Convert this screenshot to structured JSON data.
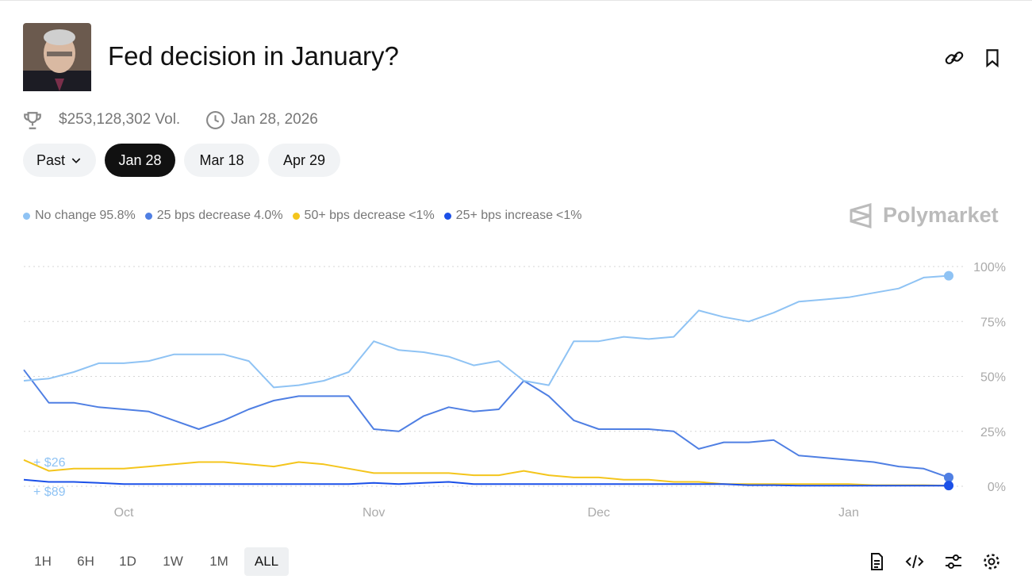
{
  "header": {
    "title": "Fed decision in January?",
    "volume": "$253,128,302 Vol.",
    "end_date": "Jan 28, 2026"
  },
  "tabs": [
    "Past",
    "Jan 28",
    "Mar 18",
    "Apr 29"
  ],
  "brand": "Polymarket",
  "ranges": [
    "1H",
    "6H",
    "1D",
    "1W",
    "1M",
    "ALL"
  ],
  "chart_data": {
    "type": "line",
    "categories": [
      null,
      null,
      null,
      null,
      "Oct",
      null,
      null,
      null,
      null,
      null,
      null,
      null,
      null,
      null,
      "Nov",
      null,
      null,
      null,
      null,
      null,
      null,
      null,
      null,
      "Dec",
      null,
      null,
      null,
      null,
      null,
      null,
      null,
      null,
      null,
      "Jan",
      null,
      null,
      null,
      null
    ],
    "series": [
      {
        "name": "No change",
        "legend_value": "95.8%",
        "color": "#8fc3f4",
        "values": [
          48,
          49,
          52,
          56,
          56,
          57,
          60,
          60,
          60,
          57,
          45,
          46,
          48,
          52,
          66,
          62,
          61,
          59,
          55,
          57,
          48,
          46,
          66,
          66,
          68,
          67,
          68,
          80,
          77,
          75,
          79,
          84,
          85,
          86,
          88,
          90,
          95,
          95.8
        ]
      },
      {
        "name": "25 bps decrease",
        "legend_value": "4.0%",
        "color": "#4f7fe3",
        "values": [
          53,
          38,
          38,
          36,
          35,
          34,
          30,
          26,
          30,
          35,
          39,
          41,
          41,
          41,
          26,
          25,
          32,
          36,
          34,
          35,
          48,
          41,
          30,
          26,
          26,
          26,
          25,
          17,
          20,
          20,
          21,
          14,
          13,
          12,
          11,
          9,
          8,
          4
        ]
      },
      {
        "name": "50+ bps decrease",
        "legend_value": "<1%",
        "color": "#f4c51c",
        "values": [
          12,
          7,
          8,
          8,
          8,
          9,
          10,
          11,
          11,
          10,
          9,
          11,
          10,
          8,
          6,
          6,
          6,
          6,
          5,
          5,
          7,
          5,
          4,
          4,
          3,
          3,
          2,
          2,
          1,
          1,
          1,
          1,
          1,
          1,
          0.5,
          0.5,
          0.5,
          0.3
        ]
      },
      {
        "name": "25+ bps increase",
        "legend_value": "<1%",
        "color": "#1b50e8",
        "values": [
          3,
          2,
          2,
          1.5,
          1,
          1,
          1,
          1,
          1,
          1,
          1,
          1,
          1,
          1,
          1.5,
          1,
          1.5,
          2,
          1,
          1,
          1,
          1,
          1,
          1,
          1,
          1,
          1,
          1,
          1,
          0.5,
          0.5,
          0.3,
          0.3,
          0.3,
          0.3,
          0.3,
          0.3,
          0.3
        ]
      }
    ],
    "annotations": [
      "+ $26",
      "+ $89"
    ],
    "ylim": [
      0,
      100
    ],
    "yticks": [
      {
        "value": 0,
        "label": "0%"
      },
      {
        "value": 25,
        "label": "25%"
      },
      {
        "value": 50,
        "label": "50%"
      },
      {
        "value": 75,
        "label": "75%"
      },
      {
        "value": 100,
        "label": "100%"
      }
    ],
    "grid": true
  }
}
